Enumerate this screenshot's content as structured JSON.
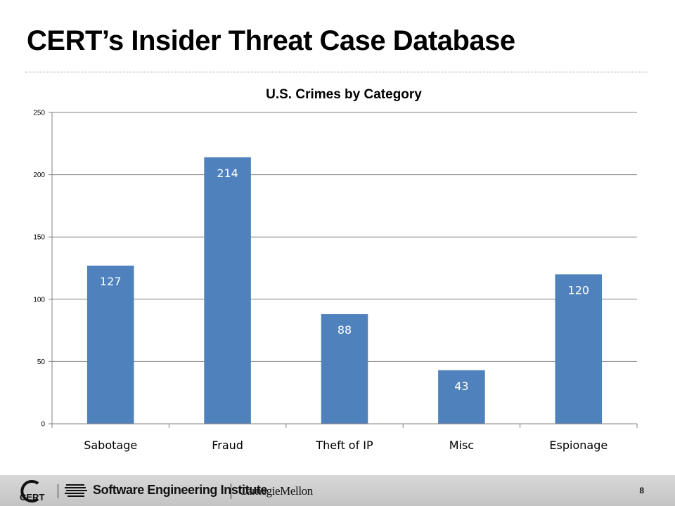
{
  "slide": {
    "title": "CERT’s Insider Threat Case Database",
    "page_number": "8"
  },
  "footer": {
    "cert_logo_text": "CERT",
    "sei_label": "Software Engineering Institute",
    "cmu_label": "CarnegieMellon"
  },
  "colors": {
    "bar": "#4f81bd",
    "bar_label": "#ffffff",
    "grid": "#808080",
    "axis_text": "#000000"
  },
  "chart_data": {
    "type": "bar",
    "title": "U.S. Crimes by Category",
    "xlabel": "",
    "ylabel": "",
    "categories": [
      "Sabotage",
      "Fraud",
      "Theft of IP",
      "Misc",
      "Espionage"
    ],
    "values": [
      127,
      214,
      88,
      43,
      120
    ],
    "ylim": [
      0,
      250
    ],
    "yticks": [
      0,
      50,
      100,
      150,
      200,
      250
    ],
    "grid": true,
    "legend": "none",
    "data_labels": "inside-top"
  }
}
